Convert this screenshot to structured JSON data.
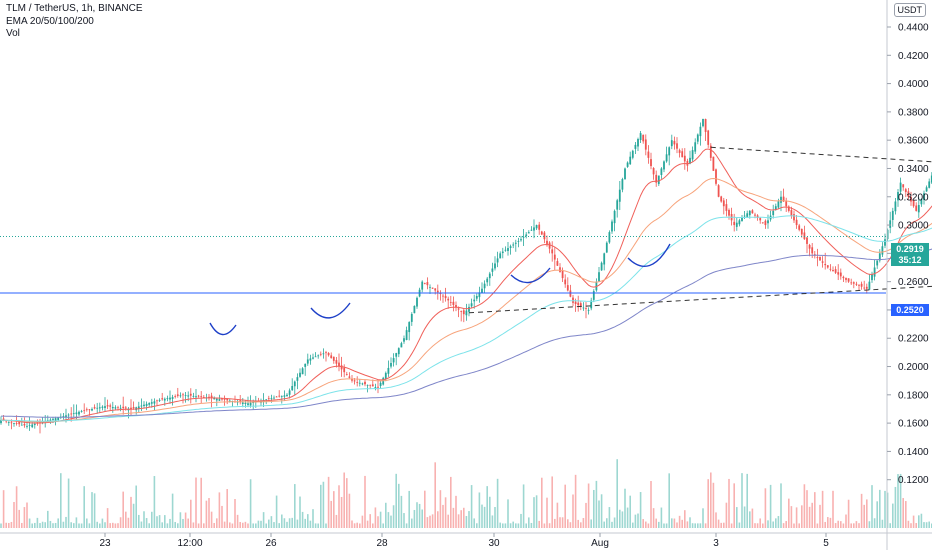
{
  "header": {
    "symbol_line": "TLM / TetherUS, 1h, BINANCE",
    "ema_line": "EMA 20/50/100/200",
    "vol_line": "Vol"
  },
  "currency_button": "USDT",
  "price_labels": {
    "last_price": "0.2919",
    "countdown": "35:12",
    "support_level": "0.2520"
  },
  "colors": {
    "up": "#26a69a",
    "down": "#ef5350",
    "ema20": "#f0605a",
    "ema50": "#f7a47c",
    "ema100": "#7de3ea",
    "ema200": "#7f86c9",
    "support": "#2962ff",
    "trendline": "#333333",
    "curve": "#1e40c8"
  },
  "chart_data": {
    "type": "candlestick",
    "ylim": [
      0.1,
      0.46
    ],
    "y_ticks": [
      "0.1200",
      "0.1400",
      "0.1600",
      "0.1800",
      "0.2000",
      "0.2200",
      "0.2400",
      "0.2600",
      "0.2800",
      "0.3000",
      "0.3200",
      "0.3400",
      "0.3600",
      "0.3800",
      "0.4000",
      "0.4200",
      "0.4400"
    ],
    "x_ticks": [
      "23",
      "12:00",
      "26",
      "28",
      "30",
      "Aug",
      "3",
      "5"
    ],
    "support_level": 0.252,
    "last_price": 0.2919,
    "bars_per_day": 24,
    "price_path": [
      [
        0,
        0.162
      ],
      [
        10,
        0.158
      ],
      [
        20,
        0.163
      ],
      [
        30,
        0.168
      ],
      [
        40,
        0.172
      ],
      [
        50,
        0.17
      ],
      [
        60,
        0.176
      ],
      [
        70,
        0.18
      ],
      [
        80,
        0.178
      ],
      [
        95,
        0.174
      ],
      [
        110,
        0.18
      ],
      [
        118,
        0.205
      ],
      [
        125,
        0.21
      ],
      [
        135,
        0.19
      ],
      [
        145,
        0.185
      ],
      [
        155,
        0.22
      ],
      [
        162,
        0.26
      ],
      [
        170,
        0.25
      ],
      [
        178,
        0.237
      ],
      [
        185,
        0.255
      ],
      [
        192,
        0.28
      ],
      [
        200,
        0.29
      ],
      [
        206,
        0.3
      ],
      [
        212,
        0.28
      ],
      [
        220,
        0.245
      ],
      [
        226,
        0.24
      ],
      [
        232,
        0.28
      ],
      [
        240,
        0.34
      ],
      [
        246,
        0.365
      ],
      [
        252,
        0.33
      ],
      [
        258,
        0.36
      ],
      [
        264,
        0.342
      ],
      [
        270,
        0.375
      ],
      [
        276,
        0.32
      ],
      [
        282,
        0.3
      ],
      [
        288,
        0.31
      ],
      [
        294,
        0.3
      ],
      [
        300,
        0.32
      ],
      [
        306,
        0.3
      ],
      [
        312,
        0.28
      ],
      [
        318,
        0.27
      ],
      [
        326,
        0.26
      ],
      [
        333,
        0.255
      ],
      [
        340,
        0.29
      ],
      [
        346,
        0.33
      ],
      [
        352,
        0.31
      ],
      [
        358,
        0.335
      ],
      [
        364,
        0.315
      ],
      [
        370,
        0.325
      ],
      [
        376,
        0.33
      ],
      [
        382,
        0.315
      ],
      [
        390,
        0.31
      ],
      [
        398,
        0.305
      ],
      [
        406,
        0.3
      ],
      [
        416,
        0.298
      ],
      [
        426,
        0.295
      ],
      [
        436,
        0.29
      ],
      [
        446,
        0.29
      ],
      [
        454,
        0.32
      ],
      [
        462,
        0.305
      ],
      [
        472,
        0.3
      ],
      [
        482,
        0.297
      ],
      [
        492,
        0.296
      ],
      [
        502,
        0.295
      ],
      [
        512,
        0.29
      ],
      [
        522,
        0.275
      ],
      [
        532,
        0.277
      ],
      [
        542,
        0.28
      ],
      [
        552,
        0.285
      ],
      [
        558,
        0.3
      ],
      [
        565,
        0.32
      ],
      [
        572,
        0.315
      ],
      [
        580,
        0.31
      ],
      [
        588,
        0.315
      ],
      [
        596,
        0.312
      ],
      [
        606,
        0.305
      ],
      [
        614,
        0.303
      ],
      [
        622,
        0.297
      ],
      [
        632,
        0.293
      ],
      [
        637,
        0.2919
      ]
    ],
    "volume_range": [
      0.003,
      0.06
    ],
    "trendlines": [
      {
        "name": "upper-trendline",
        "style": "dashed",
        "points": [
          [
            273,
            0.355
          ],
          [
            870,
            0.283
          ]
        ]
      },
      {
        "name": "lower-trendline",
        "style": "dashed",
        "points": [
          [
            180,
            0.238
          ],
          [
            790,
            0.302
          ]
        ]
      }
    ],
    "support_line": {
      "style": "solid",
      "y": 0.252
    },
    "ema_lengths": [
      20,
      50,
      100,
      200
    ],
    "ema200_start": 0.165
  }
}
